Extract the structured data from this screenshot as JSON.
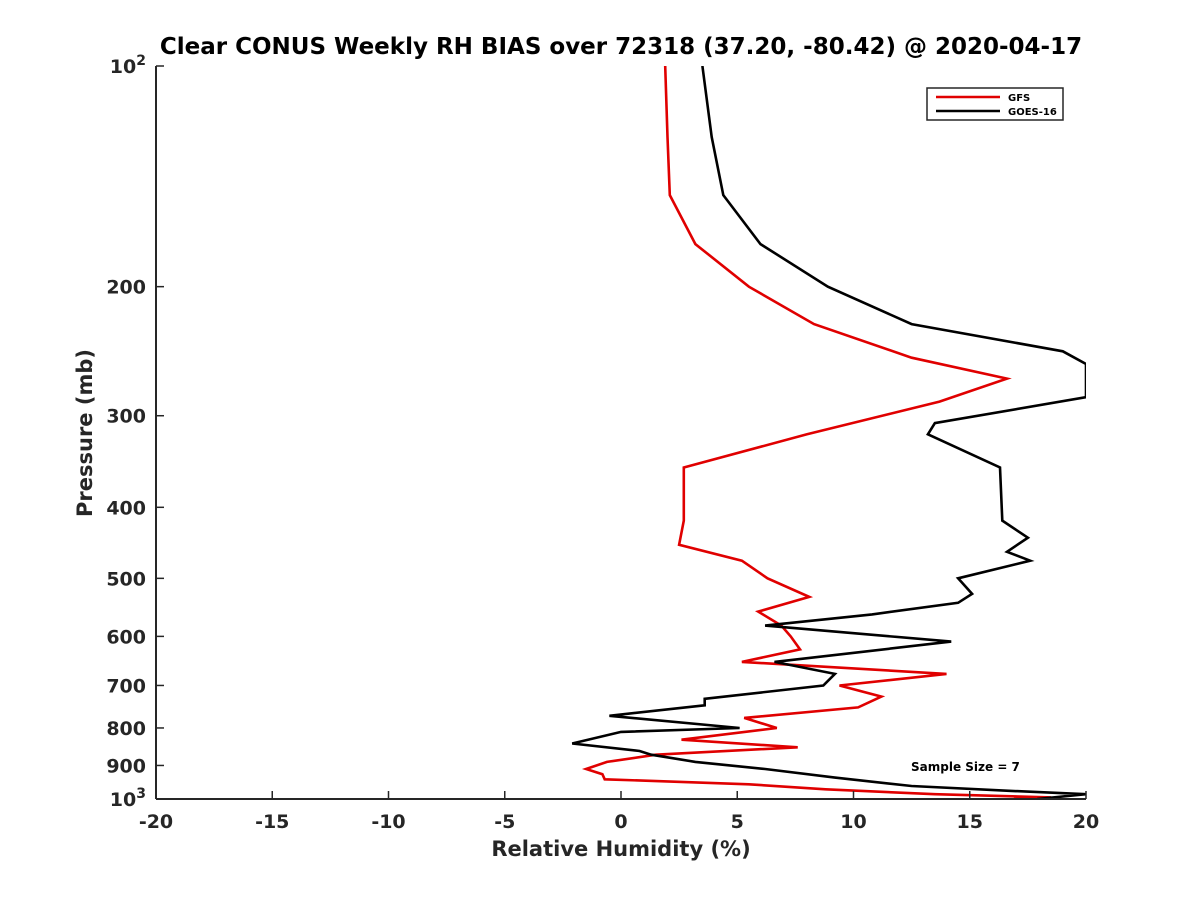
{
  "chart_data": {
    "type": "line",
    "title": "Clear CONUS Weekly RH BIAS over 72318 (37.20, -80.42) @ 2020-04-17",
    "xlabel": "Relative Humidity (%)",
    "ylabel": "Pressure (mb)",
    "xlim": [
      -20,
      20
    ],
    "ylim": [
      100,
      1000
    ],
    "y_scale": "log",
    "y_reversed": true,
    "grid": false,
    "legend_position": "top-right",
    "x_ticks": [
      "-20",
      "-15",
      "-10",
      "-5",
      "0",
      "5",
      "10",
      "15",
      "20"
    ],
    "y_ticks": [
      {
        "value": 100,
        "base": "10",
        "exp": "2"
      },
      {
        "value": 200,
        "label": "200"
      },
      {
        "value": 300,
        "label": "300"
      },
      {
        "value": 400,
        "label": "400"
      },
      {
        "value": 500,
        "label": "500"
      },
      {
        "value": 600,
        "label": "600"
      },
      {
        "value": 700,
        "label": "700"
      },
      {
        "value": 800,
        "label": "800"
      },
      {
        "value": 900,
        "label": "900"
      },
      {
        "value": 1000,
        "base": "10",
        "exp": "3"
      }
    ],
    "annotation": "Sample Size = 7",
    "series": [
      {
        "name": "GFS",
        "color": "#e00000",
        "points": [
          [
            1.9,
            100
          ],
          [
            2.0,
            125
          ],
          [
            2.1,
            150
          ],
          [
            3.2,
            175
          ],
          [
            5.5,
            200
          ],
          [
            8.3,
            225
          ],
          [
            12.5,
            250
          ],
          [
            16.6,
            267
          ],
          [
            13.7,
            287
          ],
          [
            8.0,
            318
          ],
          [
            2.7,
            353
          ],
          [
            2.7,
            417
          ],
          [
            2.5,
            450
          ],
          [
            5.2,
            473
          ],
          [
            6.3,
            500
          ],
          [
            8.1,
            530
          ],
          [
            5.9,
            555
          ],
          [
            6.9,
            580
          ],
          [
            7.3,
            600
          ],
          [
            7.7,
            625
          ],
          [
            5.2,
            650
          ],
          [
            14.0,
            675
          ],
          [
            9.4,
            700
          ],
          [
            11.2,
            725
          ],
          [
            10.2,
            750
          ],
          [
            5.3,
            775
          ],
          [
            6.7,
            800
          ],
          [
            2.6,
            830
          ],
          [
            7.6,
            850
          ],
          [
            1.5,
            870
          ],
          [
            -0.6,
            890
          ],
          [
            -1.5,
            910
          ],
          [
            -0.8,
            925
          ],
          [
            -0.7,
            940
          ],
          [
            5.5,
            955
          ],
          [
            8.8,
            970
          ],
          [
            13.5,
            985
          ],
          [
            18.5,
            995
          ],
          [
            16.9,
            1000
          ]
        ]
      },
      {
        "name": "GOES-16",
        "color": "#000000",
        "points": [
          [
            3.5,
            100
          ],
          [
            3.9,
            125
          ],
          [
            4.4,
            150
          ],
          [
            6.0,
            175
          ],
          [
            8.9,
            200
          ],
          [
            12.5,
            225
          ],
          [
            19.0,
            245
          ],
          [
            20.0,
            255
          ],
          [
            20.0,
            283
          ],
          [
            13.5,
            307
          ],
          [
            13.2,
            318
          ],
          [
            16.3,
            353
          ],
          [
            16.4,
            417
          ],
          [
            17.5,
            440
          ],
          [
            16.6,
            460
          ],
          [
            17.6,
            473
          ],
          [
            14.5,
            500
          ],
          [
            15.1,
            525
          ],
          [
            14.5,
            540
          ],
          [
            10.8,
            560
          ],
          [
            6.2,
            580
          ],
          [
            14.2,
            610
          ],
          [
            6.6,
            650
          ],
          [
            9.2,
            675
          ],
          [
            8.7,
            700
          ],
          [
            3.6,
            730
          ],
          [
            3.6,
            745
          ],
          [
            -0.5,
            770
          ],
          [
            5.1,
            800
          ],
          [
            0.0,
            810
          ],
          [
            -2.1,
            840
          ],
          [
            0.8,
            860
          ],
          [
            1.3,
            870
          ],
          [
            3.2,
            890
          ],
          [
            6.2,
            910
          ],
          [
            9.2,
            935
          ],
          [
            12.5,
            960
          ],
          [
            16.8,
            975
          ],
          [
            20.0,
            985
          ],
          [
            17.9,
            1000
          ]
        ]
      }
    ]
  }
}
